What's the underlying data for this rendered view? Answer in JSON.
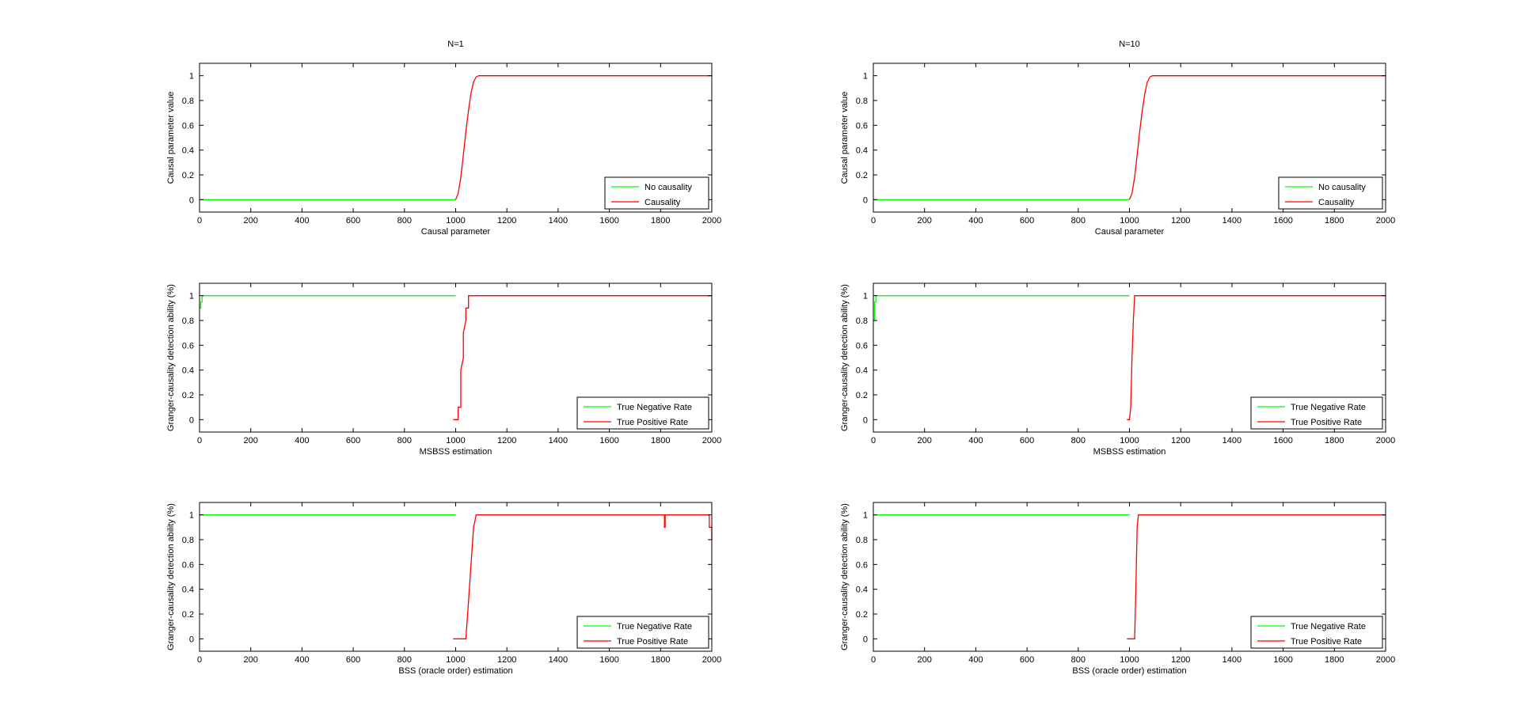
{
  "figure": {
    "background": "#ffffff"
  },
  "chart_data": [
    {
      "type": "line",
      "title": "N=1",
      "xlabel": "Causal parameter",
      "ylabel": "Causal parameter value",
      "xlim": [
        0,
        2000
      ],
      "ylim": [
        -0.1,
        1.1
      ],
      "xticks": [
        0,
        200,
        400,
        600,
        800,
        1000,
        1200,
        1400,
        1600,
        1800,
        2000
      ],
      "yticks": [
        0,
        0.2,
        0.4,
        0.6,
        0.8,
        1
      ],
      "legend_position": "bottom-right",
      "series": [
        {
          "name": "No causality",
          "color": "#00ff00",
          "x": [
            0,
            1000
          ],
          "y": [
            0,
            0
          ]
        },
        {
          "name": "Causality",
          "color": "#ff0000",
          "x": [
            1000,
            1010,
            1020,
            1030,
            1040,
            1050,
            1060,
            1070,
            1080,
            1090,
            2000
          ],
          "y": [
            0,
            0.05,
            0.18,
            0.36,
            0.55,
            0.72,
            0.86,
            0.95,
            0.99,
            1,
            1
          ]
        }
      ]
    },
    {
      "type": "line",
      "title": "N=10",
      "xlabel": "Causal parameter",
      "ylabel": "Causal parameter value",
      "xlim": [
        0,
        2000
      ],
      "ylim": [
        -0.1,
        1.1
      ],
      "xticks": [
        0,
        200,
        400,
        600,
        800,
        1000,
        1200,
        1400,
        1600,
        1800,
        2000
      ],
      "yticks": [
        0,
        0.2,
        0.4,
        0.6,
        0.8,
        1
      ],
      "legend_position": "bottom-right",
      "series": [
        {
          "name": "No causality",
          "color": "#00ff00",
          "x": [
            0,
            1000
          ],
          "y": [
            0,
            0
          ]
        },
        {
          "name": "Causality",
          "color": "#ff0000",
          "x": [
            1000,
            1010,
            1020,
            1030,
            1040,
            1050,
            1060,
            1070,
            1080,
            1090,
            2000
          ],
          "y": [
            0,
            0.05,
            0.18,
            0.36,
            0.55,
            0.72,
            0.86,
            0.95,
            0.99,
            1,
            1
          ]
        }
      ]
    },
    {
      "type": "line",
      "title": "",
      "xlabel": "MSBSS estimation",
      "ylabel": "Granger-causality detection ability (%)",
      "xlim": [
        0,
        2000
      ],
      "ylim": [
        -0.1,
        1.1
      ],
      "xticks": [
        0,
        200,
        400,
        600,
        800,
        1000,
        1200,
        1400,
        1600,
        1800,
        2000
      ],
      "yticks": [
        0,
        0.2,
        0.4,
        0.6,
        0.8,
        1
      ],
      "legend_position": "bottom-right",
      "series": [
        {
          "name": "True Negative Rate",
          "color": "#00ff00",
          "x": [
            0,
            5,
            5,
            10,
            10,
            1000
          ],
          "y": [
            0.9,
            0.9,
            0.95,
            0.95,
            1,
            1
          ]
        },
        {
          "name": "True Positive Rate",
          "color": "#ff0000",
          "x": [
            990,
            1010,
            1010,
            1020,
            1020,
            1030,
            1030,
            1040,
            1040,
            1050,
            1050,
            1060,
            2000
          ],
          "y": [
            0,
            0,
            0.1,
            0.1,
            0.4,
            0.5,
            0.7,
            0.8,
            0.9,
            0.9,
            1,
            1,
            1
          ]
        }
      ]
    },
    {
      "type": "line",
      "title": "",
      "xlabel": "MSBSS estimation",
      "ylabel": "Granger-causality detection ability (%)",
      "xlim": [
        0,
        2000
      ],
      "ylim": [
        -0.1,
        1.1
      ],
      "xticks": [
        0,
        200,
        400,
        600,
        800,
        1000,
        1200,
        1400,
        1600,
        1800,
        2000
      ],
      "yticks": [
        0,
        0.2,
        0.4,
        0.6,
        0.8,
        1
      ],
      "legend_position": "bottom-right",
      "series": [
        {
          "name": "True Negative Rate",
          "color": "#00ff00",
          "x": [
            0,
            5,
            5,
            10,
            10,
            1000
          ],
          "y": [
            0.8,
            0.8,
            0.95,
            0.95,
            1,
            1
          ]
        },
        {
          "name": "True Positive Rate",
          "color": "#ff0000",
          "x": [
            990,
            1000,
            1005,
            1010,
            1015,
            1020,
            1030,
            2000
          ],
          "y": [
            0,
            0,
            0.1,
            0.5,
            0.8,
            1,
            1,
            1
          ]
        }
      ]
    },
    {
      "type": "line",
      "title": "",
      "xlabel": "BSS (oracle order) estimation",
      "ylabel": "Granger-causality detection ability (%)",
      "xlim": [
        0,
        2000
      ],
      "ylim": [
        -0.1,
        1.1
      ],
      "xticks": [
        0,
        200,
        400,
        600,
        800,
        1000,
        1200,
        1400,
        1600,
        1800,
        2000
      ],
      "yticks": [
        0,
        0.2,
        0.4,
        0.6,
        0.8,
        1
      ],
      "legend_position": "bottom-right",
      "series": [
        {
          "name": "True Negative Rate",
          "color": "#00ff00",
          "x": [
            0,
            1000
          ],
          "y": [
            1,
            1
          ]
        },
        {
          "name": "True Positive Rate",
          "color": "#ff0000",
          "x": [
            990,
            1040,
            1050,
            1060,
            1070,
            1080,
            1090,
            1815,
            1815,
            1818,
            1818,
            1990,
            1990,
            2000,
            2000
          ],
          "y": [
            0,
            0,
            0.3,
            0.6,
            0.9,
            1,
            1,
            1,
            0.9,
            0.9,
            1,
            1,
            0.9,
            0.9,
            0.8
          ]
        }
      ]
    },
    {
      "type": "line",
      "title": "",
      "xlabel": "BSS (oracle order) estimation",
      "ylabel": "Granger-causality detection ability (%)",
      "xlim": [
        0,
        2000
      ],
      "ylim": [
        -0.1,
        1.1
      ],
      "xticks": [
        0,
        200,
        400,
        600,
        800,
        1000,
        1200,
        1400,
        1600,
        1800,
        2000
      ],
      "yticks": [
        0,
        0.2,
        0.4,
        0.6,
        0.8,
        1
      ],
      "legend_position": "bottom-right",
      "series": [
        {
          "name": "True Negative Rate",
          "color": "#00ff00",
          "x": [
            0,
            1000
          ],
          "y": [
            1,
            1
          ]
        },
        {
          "name": "True Positive Rate",
          "color": "#ff0000",
          "x": [
            990,
            1020,
            1025,
            1030,
            1035,
            1040,
            2000
          ],
          "y": [
            0,
            0,
            0.4,
            0.9,
            1,
            1,
            1
          ]
        }
      ]
    }
  ]
}
